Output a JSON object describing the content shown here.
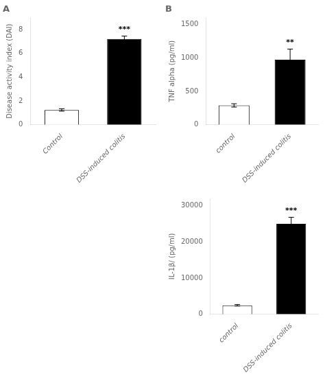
{
  "chart_data": [
    {
      "type": "bar",
      "title": "A",
      "categories": [
        "Control",
        "DSS-induced colitis"
      ],
      "values": [
        1.25,
        7.2
      ],
      "errors": [
        0.1,
        0.25
      ],
      "colors": [
        "white",
        "black"
      ],
      "ylabel": "Disease activity index (DAI)",
      "ylim": [
        0,
        9
      ],
      "yticks": [
        0,
        2,
        4,
        6,
        8
      ],
      "annotations": [
        null,
        "***"
      ],
      "grid": false
    },
    {
      "type": "bar",
      "title": "B",
      "categories": [
        "control",
        "DSS-induced colitis"
      ],
      "values": [
        290,
        970
      ],
      "errors": [
        25,
        160
      ],
      "colors": [
        "white",
        "black"
      ],
      "ylabel": "TNF alpha (pg/ml)",
      "ylim": [
        0,
        1600
      ],
      "yticks": [
        0,
        500,
        1000,
        1500
      ],
      "annotations": [
        null,
        "**"
      ],
      "grid": false
    },
    {
      "type": "bar",
      "categories": [
        "control",
        "DSS-induced colitis"
      ],
      "values": [
        2500,
        25000
      ],
      "errors": [
        200,
        1800
      ],
      "colors": [
        "white",
        "black"
      ],
      "ylabel": "IL-1β/ (pg/ml)",
      "ylim": [
        0,
        32000
      ],
      "yticks": [
        0,
        10000,
        20000,
        30000
      ],
      "annotations": [
        null,
        "***"
      ],
      "grid": false
    }
  ]
}
